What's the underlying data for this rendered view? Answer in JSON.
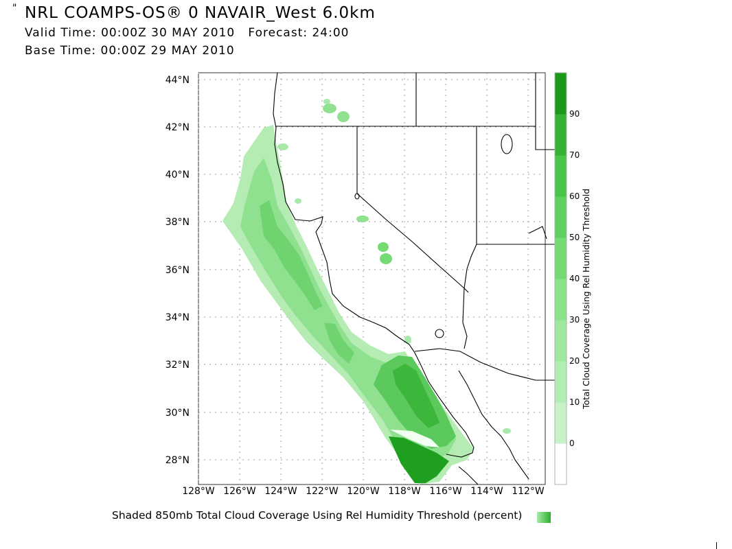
{
  "header": {
    "title": "NRL COAMPS-OS® 0 NAVAIR_West 6.0km",
    "valid_time": "Valid Time: 00:00Z 30 MAY 2010   Forecast: 24:00",
    "base_time": "Base Time: 00:00Z 29 MAY 2010"
  },
  "map": {
    "lat_labels": [
      "44°N",
      "42°N",
      "40°N",
      "38°N",
      "36°N",
      "34°N",
      "32°N",
      "30°N",
      "28°N"
    ],
    "lon_labels": [
      "128°W",
      "126°W",
      "124°W",
      "122°W",
      "120°W",
      "118°W",
      "116°W",
      "114°W",
      "112°W"
    ]
  },
  "colorbar": {
    "title": "Total Cloud Coverage Using Rel Humidity Threshold",
    "levels": [
      "0",
      "10",
      "20",
      "30",
      "40",
      "50",
      "60",
      "70",
      "90"
    ],
    "colors": [
      "#ffffff",
      "#c6f2c6",
      "#b2eeb2",
      "#9fe89f",
      "#8ae28a",
      "#74da74",
      "#5dd05d",
      "#49c549",
      "#32b432",
      "#1a9a1a"
    ]
  },
  "caption": "Shaded 850mb Total Cloud Coverage Using Rel Humidity Threshold (percent)",
  "tick": "\""
}
